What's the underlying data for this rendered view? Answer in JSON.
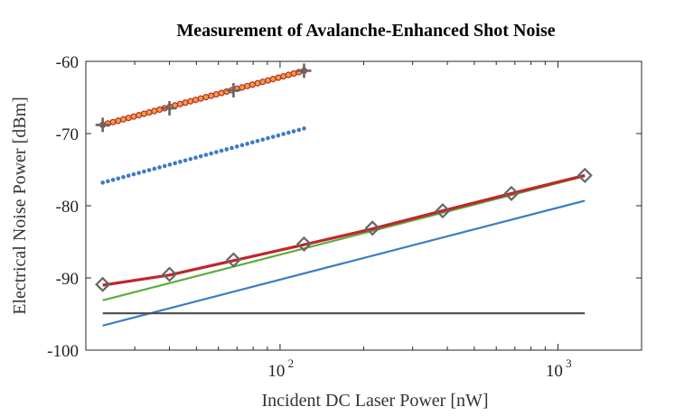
{
  "chart_data": {
    "type": "line",
    "title": "Measurement of Avalanche-Enhanced Shot Noise",
    "xlabel": "Incident DC Laser Power [nW]",
    "ylabel": "Electrical Noise Power [dBm]",
    "xscale": "log",
    "xlim": [
      20,
      2000
    ],
    "ylim": [
      -100,
      -60
    ],
    "x_ticks": [
      {
        "value": 100,
        "base": "10",
        "exp": "2"
      },
      {
        "value": 1000,
        "base": "10",
        "exp": "3"
      }
    ],
    "y_ticks": [
      {
        "value": -60,
        "label": "-60"
      },
      {
        "value": -70,
        "label": "-70"
      },
      {
        "value": -80,
        "label": "-80"
      },
      {
        "value": -90,
        "label": "-90"
      },
      {
        "value": -100,
        "label": "-100"
      }
    ],
    "grid": false,
    "legend": "none",
    "series": [
      {
        "style": "dots",
        "color": "#3b7dc4",
        "x": [
          23,
          122
        ],
        "y": [
          -76.8,
          -69.3
        ],
        "n": 40
      },
      {
        "style": "dots-outlined",
        "color": "#e8a33c",
        "edge": "#c0262b",
        "x": [
          23,
          122
        ],
        "y": [
          -68.8,
          -61.3
        ],
        "n": 40
      },
      {
        "style": "markers-plus",
        "color": "#666666",
        "x": [
          23,
          40,
          68,
          122
        ],
        "y": [
          -68.8,
          -66.5,
          -64.0,
          -61.3
        ]
      },
      {
        "style": "line",
        "color": "#3b7dc4",
        "x": [
          23,
          1250
        ],
        "y": [
          -96.6,
          -79.3
        ]
      },
      {
        "style": "line",
        "color": "#5aad3c",
        "x": [
          23,
          1250
        ],
        "y": [
          -93.1,
          -75.9
        ]
      },
      {
        "style": "line-thick",
        "color": "#c0262b",
        "x": [
          23,
          40,
          68,
          122,
          215,
          385,
          680,
          1250
        ],
        "y": [
          -91.0,
          -89.6,
          -87.6,
          -85.4,
          -83.2,
          -80.7,
          -78.3,
          -75.8
        ]
      },
      {
        "style": "markers-diamond",
        "color": "#666666",
        "x": [
          23,
          40,
          68,
          122,
          215,
          385,
          680,
          1250
        ],
        "y": [
          -90.9,
          -89.5,
          -87.5,
          -85.3,
          -83.1,
          -80.7,
          -78.3,
          -75.8
        ]
      },
      {
        "style": "line",
        "color": "#4a4a4a",
        "x": [
          23,
          1250
        ],
        "y": [
          -94.9,
          -94.9
        ]
      }
    ]
  }
}
